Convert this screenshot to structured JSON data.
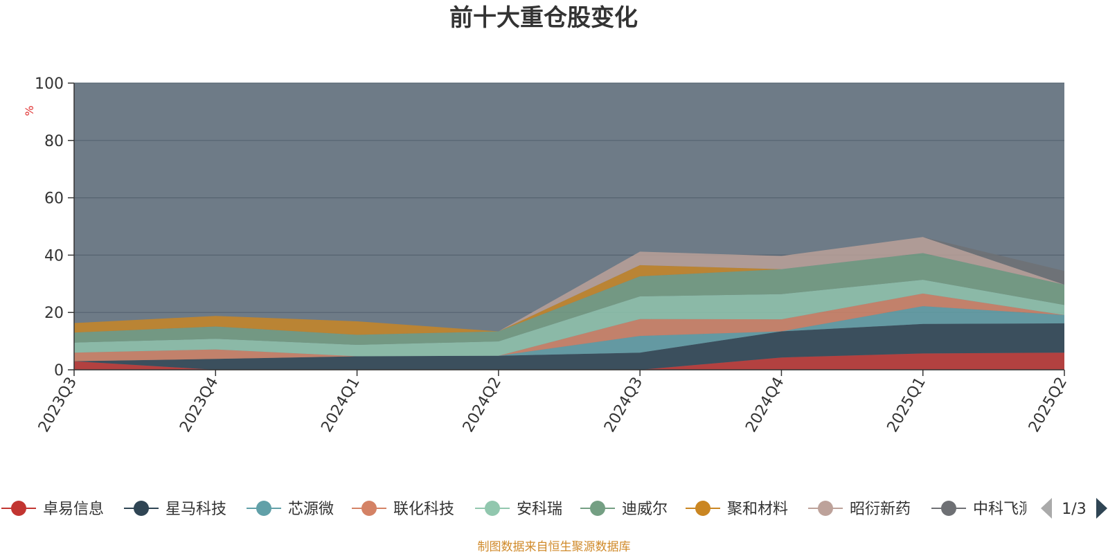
{
  "chart_data": {
    "type": "area",
    "title": "前十大重仓股变化",
    "ylabel": "%",
    "ylim": [
      0,
      100
    ],
    "yticks": [
      0,
      20,
      40,
      60,
      80,
      100
    ],
    "categories": [
      "2023Q3",
      "2023Q4",
      "2024Q1",
      "2024Q2",
      "2024Q3",
      "2024Q4",
      "2025Q1",
      "2025Q2"
    ],
    "background_color": "#6e7b87",
    "series": [
      {
        "name": "卓易信息",
        "color": "#c23531",
        "values": [
          3.0,
          0.0,
          0.0,
          0.0,
          0.0,
          4.3,
          5.7,
          6.0
        ]
      },
      {
        "name": "星马科技",
        "color": "#2f4554",
        "values": [
          0.0,
          3.8,
          4.7,
          4.9,
          6.0,
          9.1,
          10.3,
          10.2
        ]
      },
      {
        "name": "芯源微",
        "color": "#61a0a8",
        "values": [
          0.0,
          0.0,
          0.0,
          0.0,
          5.8,
          0.0,
          6.2,
          2.9
        ]
      },
      {
        "name": "联化科技",
        "color": "#d48265",
        "values": [
          3.0,
          3.3,
          0.0,
          0.0,
          5.9,
          4.2,
          4.4,
          0.0
        ]
      },
      {
        "name": "安科瑞",
        "color": "#91c7ae",
        "values": [
          3.5,
          3.7,
          4.0,
          5.0,
          7.9,
          8.8,
          4.8,
          3.5
        ]
      },
      {
        "name": "迪威尔",
        "color": "#749f83",
        "values": [
          3.5,
          4.3,
          3.5,
          3.5,
          7.0,
          8.7,
          9.3,
          7.1
        ]
      },
      {
        "name": "聚和材料",
        "color": "#ca8622",
        "values": [
          3.3,
          3.7,
          4.7,
          0.0,
          3.9,
          0.0,
          0.0,
          0.0
        ]
      },
      {
        "name": "昭衍新药",
        "color": "#bda29a",
        "values": [
          0.0,
          0.0,
          0.0,
          0.0,
          4.7,
          4.6,
          5.6,
          0.0
        ]
      },
      {
        "name": "中科飞测",
        "color": "#6e7074",
        "values": [
          0.0,
          0.0,
          0.0,
          0.0,
          0.0,
          0.0,
          0.0,
          4.8
        ]
      }
    ]
  },
  "legend": {
    "items": [
      "卓易信息",
      "星马科技",
      "芯源微",
      "联化科技",
      "安科瑞",
      "迪威尔",
      "聚和材料",
      "昭衍新药",
      "中科飞测"
    ],
    "page": "1/3"
  },
  "footer": {
    "source": "制图数据来自恒生聚源数据库"
  }
}
